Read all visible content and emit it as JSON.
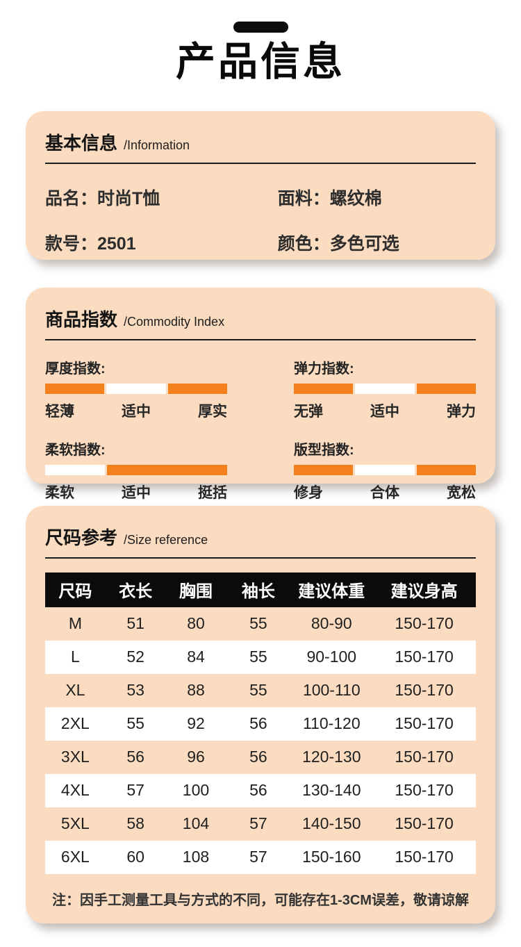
{
  "page": {
    "title": "产品信息"
  },
  "colors": {
    "card_bg": "#FBDCC1",
    "accent_orange": "#F2801C",
    "table_header_bg": "#0B0B0B",
    "inactive_segment": "#FFFFFF"
  },
  "basic_info": {
    "heading": "基本信息",
    "heading_en": "/Information",
    "fields": [
      {
        "label": "品名：",
        "value": "时尚T恤"
      },
      {
        "label": "面料：",
        "value": "螺纹棉"
      },
      {
        "label": "款号：",
        "value": "2501"
      },
      {
        "label": "颜色：",
        "value": "多色可选"
      }
    ]
  },
  "commodity_index": {
    "heading": "商品指数",
    "heading_en": "/Commodity Index",
    "indexes": [
      {
        "label": "厚度指数:",
        "scale": [
          "轻薄",
          "适中",
          "厚实"
        ],
        "segments": [
          {
            "color": "#F2801C",
            "flex": 1
          },
          {
            "color": "#FFFFFF",
            "flex": 1
          },
          {
            "color": "#F2801C",
            "flex": 1
          }
        ]
      },
      {
        "label": "弹力指数:",
        "scale": [
          "无弹",
          "适中",
          "弹力"
        ],
        "segments": [
          {
            "color": "#F2801C",
            "flex": 1
          },
          {
            "color": "#FFFFFF",
            "flex": 1
          },
          {
            "color": "#F2801C",
            "flex": 1
          }
        ]
      },
      {
        "label": "柔软指数:",
        "scale": [
          "柔软",
          "适中",
          "挺括"
        ],
        "segments": [
          {
            "color": "#FFFFFF",
            "flex": 1
          },
          {
            "color": "#F2801C",
            "flex": 2.02
          }
        ]
      },
      {
        "label": "版型指数:",
        "scale": [
          "修身",
          "合体",
          "宽松"
        ],
        "segments": [
          {
            "color": "#F2801C",
            "flex": 1
          },
          {
            "color": "#FFFFFF",
            "flex": 1
          },
          {
            "color": "#F2801C",
            "flex": 1
          }
        ]
      }
    ]
  },
  "size_reference": {
    "heading": "尺码参考",
    "heading_en": "/Size reference",
    "table": {
      "headers": [
        "尺码",
        "衣长",
        "胸围",
        "袖长",
        "建议体重",
        "建议身高"
      ],
      "rows": [
        [
          "M",
          "51",
          "80",
          "55",
          "80-90",
          "150-170"
        ],
        [
          "L",
          "52",
          "84",
          "55",
          "90-100",
          "150-170"
        ],
        [
          "XL",
          "53",
          "88",
          "55",
          "100-110",
          "150-170"
        ],
        [
          "2XL",
          "55",
          "92",
          "56",
          "110-120",
          "150-170"
        ],
        [
          "3XL",
          "56",
          "96",
          "56",
          "120-130",
          "150-170"
        ],
        [
          "4XL",
          "57",
          "100",
          "56",
          "130-140",
          "150-170"
        ],
        [
          "5XL",
          "58",
          "104",
          "57",
          "140-150",
          "150-170"
        ],
        [
          "6XL",
          "60",
          "108",
          "57",
          "150-160",
          "150-170"
        ]
      ]
    },
    "note": "注：因手工测量工具与方式的不同，可能存在1-3CM误差，敬请谅解"
  }
}
